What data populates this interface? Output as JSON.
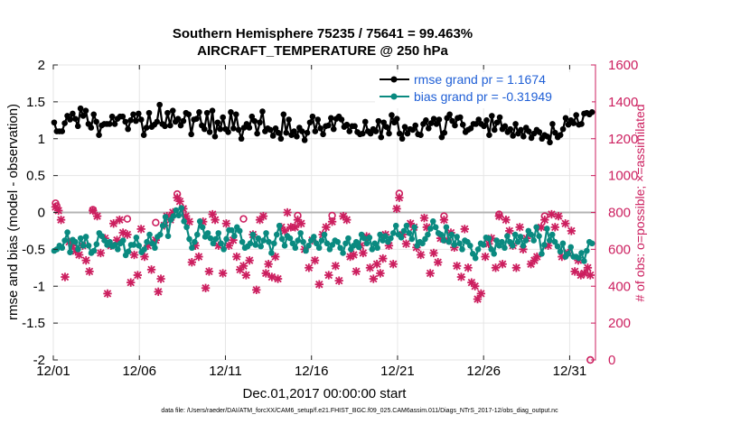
{
  "colors": {
    "rmse": "#000000",
    "bias": "#0a8a80",
    "obs": "#cc1f5f",
    "legend_text": "#1f5fd6",
    "zero_line": "#b4b4b4",
    "grid": "#e6e6e6"
  },
  "chart_data": {
    "type": "line",
    "title": [
      "Southern Hemisphere 75235 / 75641 = 99.463%",
      "AIRCRAFT_TEMPERATURE @ 250 hPa"
    ],
    "xlabel": "Dec.01,2017 00:00:00 start",
    "ylabel": "rmse and bias (model - observation)",
    "y2label": "# of obs: o=possible; ×=assimilated",
    "xlim": [
      0,
      31.5
    ],
    "ylim": [
      -2,
      2
    ],
    "y2lim": [
      0,
      1600
    ],
    "xticks": [
      0,
      5,
      10,
      15,
      20,
      25,
      30
    ],
    "xtick_labels": [
      "12/01",
      "12/06",
      "12/11",
      "12/16",
      "12/21",
      "12/26",
      "12/31"
    ],
    "yticks": [
      2,
      1.5,
      1,
      0.5,
      0,
      -0.5,
      -1,
      -1.5,
      -2
    ],
    "ytick_labels": [
      "2",
      "1.5",
      "1",
      "0.5",
      "0",
      "-0.5",
      "-1",
      "-1.5",
      "-2"
    ],
    "y2ticks": [
      1600,
      1400,
      1200,
      1000,
      800,
      600,
      400,
      200,
      0
    ],
    "y2tick_labels": [
      "1600",
      "1400",
      "1200",
      "1000",
      "800",
      "600",
      "400",
      "200",
      "0"
    ],
    "legend_position": "top-right",
    "legend": [
      "rmse grand pr = 1.1674",
      "bias grand pr = -0.31949"
    ],
    "footer": "data file: /Users/raeder/DAI/ATM_forcXX/CAM6_setup/f.e21.FHIST_BGC.f09_025.CAM6assim.011/Diags_NTrS_2017-12/obs_diag_output.nc",
    "series": [
      {
        "name": "rmse",
        "values": [
          1.22,
          1.1,
          1.1,
          1.1,
          1.21,
          1.31,
          1.26,
          1.34,
          1.27,
          1.17,
          1.41,
          1.31,
          1.38,
          1.2,
          1.15,
          1.33,
          1.23,
          1.05,
          1.18,
          1.2,
          1.2,
          1.2,
          1.3,
          1.2,
          1.27,
          1.3,
          1.3,
          1.23,
          1.13,
          1.25,
          1.33,
          1.24,
          1.34,
          1.26,
          1.05,
          1.15,
          1.35,
          1.16,
          1.19,
          1.23,
          1.46,
          1.2,
          1.17,
          1.35,
          1.18,
          1.38,
          1.23,
          1.27,
          1.18,
          1.24,
          1.35,
          1.33,
          1.06,
          1.26,
          1.27,
          1.36,
          1.18,
          1.13,
          1.35,
          1.09,
          1.38,
          1.03,
          1.22,
          1.13,
          1.29,
          1.13,
          1.09,
          1.36,
          1.14,
          1.33,
          1.12,
          1.0,
          1.15,
          1.2,
          1.15,
          1.3,
          1.24,
          1.07,
          1.22,
          1.37,
          1.1,
          1.14,
          1.12,
          1.04,
          1.14,
          1.08,
          1.0,
          1.33,
          1.08,
          1.26,
          1.05,
          1.1,
          1.03,
          1.15,
          1.1,
          0.98,
          1.08,
          1.22,
          1.3,
          1.1,
          1.26,
          1.14,
          1.06,
          1.17,
          1.18,
          1.28,
          1.13,
          1.27,
          1.3,
          1.26,
          1.16,
          1.19,
          1.1,
          1.17,
          1.17,
          1.09,
          1.06,
          1.07,
          1.23,
          1.1,
          1.07,
          1.13,
          1.1,
          1.24,
          1.02,
          1.22,
          1.16,
          1.07,
          1.32,
          1.22,
          1.27,
          1.07,
          1.0,
          1.16,
          1.07,
          1.13,
          1.12,
          1.18,
          1.06,
          1.05,
          1.2,
          1.25,
          1.14,
          1.21,
          1.27,
          1.2,
          1.26,
          1.02,
          1.08,
          1.28,
          1.33,
          1.24,
          1.18,
          1.28,
          1.29,
          1.19,
          1.09,
          1.12,
          1.14,
          1.2,
          1.2,
          1.26,
          1.2,
          1.17,
          1.25,
          1.05,
          1.31,
          1.12,
          1.22,
          1.29,
          1.13,
          1.17,
          1.09,
          1.13,
          1.04,
          1.2,
          1.07,
          1.12,
          1.03,
          1.15,
          1.1,
          1.01,
          1.07,
          1.12,
          1.09,
          1.0,
          1.05,
          1.03,
          0.95,
          1.2,
          1.08,
          1.02,
          1.05,
          1.13,
          1.28,
          1.19,
          1.25,
          1.21,
          1.32,
          1.19,
          1.2,
          1.34,
          1.35,
          1.33,
          1.36
        ]
      },
      {
        "name": "bias",
        "values": [
          -0.52,
          -0.5,
          -0.45,
          -0.48,
          -0.38,
          -0.27,
          -0.54,
          -0.37,
          -0.4,
          -0.5,
          -0.35,
          -0.45,
          -0.33,
          -0.45,
          -0.55,
          -0.52,
          -0.43,
          -0.28,
          -0.32,
          -0.38,
          -0.44,
          -0.4,
          -0.46,
          -0.44,
          -0.5,
          -0.42,
          -0.38,
          -0.58,
          -0.53,
          -0.44,
          -0.44,
          -0.34,
          -0.45,
          -0.54,
          -0.5,
          -0.4,
          -0.3,
          -0.42,
          -0.48,
          -0.33,
          -0.3,
          -0.18,
          -0.06,
          -0.32,
          -0.1,
          -0.05,
          0.03,
          -0.04,
          0.06,
          -0.12,
          -0.2,
          -0.36,
          -0.48,
          -0.4,
          -0.3,
          -0.12,
          -0.2,
          -0.33,
          -0.28,
          -0.35,
          -0.42,
          -0.36,
          -0.28,
          -0.42,
          -0.5,
          -0.36,
          -0.24,
          -0.24,
          -0.32,
          -0.2,
          -0.25,
          -0.4,
          -0.48,
          -0.46,
          -0.42,
          -0.3,
          -0.44,
          -0.35,
          -0.46,
          -0.38,
          -0.28,
          -0.4,
          -0.55,
          -0.42,
          -0.3,
          -0.18,
          -0.36,
          -0.45,
          -0.32,
          -0.35,
          -0.42,
          -0.48,
          -0.38,
          -0.28,
          -0.4,
          -0.52,
          -0.45,
          -0.38,
          -0.33,
          -0.42,
          -0.48,
          -0.38,
          -0.3,
          -0.42,
          -0.5,
          -0.44,
          -0.38,
          -0.4,
          -0.48,
          -0.55,
          -0.42,
          -0.35,
          -0.5,
          -0.45,
          -0.4,
          -0.47,
          -0.3,
          -0.35,
          -0.42,
          -0.34,
          -0.5,
          -0.42,
          -0.48,
          -0.3,
          -0.38,
          -0.32,
          -0.4,
          -0.35,
          -0.28,
          -0.18,
          -0.3,
          -0.34,
          -0.25,
          -0.18,
          -0.28,
          -0.36,
          -0.2,
          -0.45,
          -0.4,
          -0.42,
          -0.36,
          -0.3,
          -0.22,
          -0.12,
          -0.2,
          -0.28,
          -0.3,
          -0.38,
          -0.2,
          -0.4,
          -0.3,
          -0.44,
          -0.33,
          -0.42,
          -0.5,
          -0.38,
          -0.4,
          -0.45,
          -0.56,
          -0.62,
          -0.5,
          -0.42,
          -0.44,
          -0.34,
          -0.35,
          -0.5,
          -0.56,
          -0.38,
          -0.45,
          -0.4,
          -0.48,
          -0.32,
          -0.4,
          -0.45,
          -0.3,
          -0.4,
          -0.33,
          -0.45,
          -0.38,
          -0.25,
          -0.3,
          -0.38,
          -0.2,
          -0.32,
          -0.56,
          -0.44,
          -0.22,
          -0.38,
          -0.3,
          -0.4,
          -0.46,
          -0.53,
          -0.42,
          -0.6,
          -0.56,
          -0.47,
          -0.6,
          -0.6,
          -0.62,
          -0.55,
          -0.66,
          -0.52,
          -0.4,
          -0.42
        ]
      },
      {
        "name": "obs_assimilated",
        "points": [
          [
            0.13,
            830
          ],
          [
            0.3,
            810
          ],
          [
            0.45,
            760
          ],
          [
            0.68,
            450
          ],
          [
            0.92,
            640
          ],
          [
            1.1,
            620
          ],
          [
            1.3,
            590
          ],
          [
            1.5,
            570
          ],
          [
            1.7,
            620
          ],
          [
            1.9,
            540
          ],
          [
            2.1,
            480
          ],
          [
            2.3,
            810
          ],
          [
            2.55,
            780
          ],
          [
            2.75,
            580
          ],
          [
            3.0,
            660
          ],
          [
            3.15,
            360
          ],
          [
            3.35,
            620
          ],
          [
            3.5,
            740
          ],
          [
            3.7,
            650
          ],
          [
            3.85,
            760
          ],
          [
            4.05,
            690
          ],
          [
            4.3,
            680
          ],
          [
            4.5,
            420
          ],
          [
            4.7,
            570
          ],
          [
            4.9,
            460
          ],
          [
            5.1,
            710
          ],
          [
            5.3,
            560
          ],
          [
            5.5,
            620
          ],
          [
            5.7,
            490
          ],
          [
            5.95,
            650
          ],
          [
            6.1,
            370
          ],
          [
            6.25,
            440
          ],
          [
            6.45,
            730
          ],
          [
            6.6,
            780
          ],
          [
            6.8,
            760
          ],
          [
            6.95,
            800
          ],
          [
            7.2,
            880
          ],
          [
            7.35,
            860
          ],
          [
            7.55,
            820
          ],
          [
            7.7,
            780
          ],
          [
            7.9,
            750
          ],
          [
            8.05,
            530
          ],
          [
            8.25,
            620
          ],
          [
            8.45,
            560
          ],
          [
            8.7,
            750
          ],
          [
            8.85,
            390
          ],
          [
            9.05,
            480
          ],
          [
            9.25,
            790
          ],
          [
            9.4,
            760
          ],
          [
            9.6,
            620
          ],
          [
            9.85,
            470
          ],
          [
            10.05,
            740
          ],
          [
            10.2,
            620
          ],
          [
            10.45,
            650
          ],
          [
            10.65,
            560
          ],
          [
            10.85,
            490
          ],
          [
            11.05,
            510
          ],
          [
            11.2,
            460
          ],
          [
            11.4,
            540
          ],
          [
            11.6,
            680
          ],
          [
            11.8,
            380
          ],
          [
            12.0,
            760
          ],
          [
            12.2,
            780
          ],
          [
            12.35,
            470
          ],
          [
            12.5,
            520
          ],
          [
            12.7,
            450
          ],
          [
            12.9,
            560
          ],
          [
            13.05,
            440
          ],
          [
            13.25,
            720
          ],
          [
            13.45,
            700
          ],
          [
            13.6,
            800
          ],
          [
            13.8,
            720
          ],
          [
            14.05,
            720
          ],
          [
            14.2,
            760
          ],
          [
            14.4,
            740
          ],
          [
            14.6,
            600
          ],
          [
            14.85,
            500
          ],
          [
            15.05,
            650
          ],
          [
            15.2,
            540
          ],
          [
            15.45,
            410
          ],
          [
            15.65,
            680
          ],
          [
            15.85,
            720
          ],
          [
            16.0,
            460
          ],
          [
            16.2,
            750
          ],
          [
            16.4,
            510
          ],
          [
            16.6,
            430
          ],
          [
            16.85,
            780
          ],
          [
            17.05,
            760
          ],
          [
            17.25,
            560
          ],
          [
            17.45,
            570
          ],
          [
            17.6,
            480
          ],
          [
            17.85,
            620
          ],
          [
            18.0,
            580
          ],
          [
            18.2,
            670
          ],
          [
            18.4,
            500
          ],
          [
            18.6,
            440
          ],
          [
            18.8,
            520
          ],
          [
            19.0,
            470
          ],
          [
            19.15,
            550
          ],
          [
            19.3,
            680
          ],
          [
            19.5,
            620
          ],
          [
            19.75,
            520
          ],
          [
            19.95,
            820
          ],
          [
            20.1,
            880
          ],
          [
            20.3,
            680
          ],
          [
            20.5,
            630
          ],
          [
            20.75,
            740
          ],
          [
            20.95,
            720
          ],
          [
            21.1,
            610
          ],
          [
            21.35,
            570
          ],
          [
            21.55,
            770
          ],
          [
            21.7,
            720
          ],
          [
            21.9,
            470
          ],
          [
            22.1,
            580
          ],
          [
            22.35,
            530
          ],
          [
            22.5,
            660
          ],
          [
            22.7,
            760
          ],
          [
            22.9,
            650
          ],
          [
            23.1,
            690
          ],
          [
            23.3,
            610
          ],
          [
            23.45,
            510
          ],
          [
            23.7,
            450
          ],
          [
            23.9,
            710
          ],
          [
            24.1,
            500
          ],
          [
            24.3,
            420
          ],
          [
            24.5,
            400
          ],
          [
            24.65,
            330
          ],
          [
            24.85,
            360
          ],
          [
            25.1,
            560
          ],
          [
            25.3,
            630
          ],
          [
            25.45,
            660
          ],
          [
            25.7,
            500
          ],
          [
            25.9,
            780
          ],
          [
            26.1,
            520
          ],
          [
            26.3,
            760
          ],
          [
            26.5,
            700
          ],
          [
            26.7,
            620
          ],
          [
            26.9,
            500
          ],
          [
            27.1,
            720
          ],
          [
            27.3,
            600
          ],
          [
            27.5,
            660
          ],
          [
            27.75,
            520
          ],
          [
            27.95,
            540
          ],
          [
            28.1,
            560
          ],
          [
            28.35,
            720
          ],
          [
            28.55,
            760
          ],
          [
            28.75,
            620
          ],
          [
            28.95,
            790
          ],
          [
            29.15,
            720
          ],
          [
            29.35,
            780
          ],
          [
            29.55,
            560
          ],
          [
            29.75,
            740
          ],
          [
            29.9,
            580
          ],
          [
            30.1,
            700
          ],
          [
            30.3,
            480
          ],
          [
            30.5,
            540
          ],
          [
            30.65,
            460
          ],
          [
            30.85,
            470
          ],
          [
            31.05,
            500
          ],
          [
            31.2,
            460
          ]
        ]
      },
      {
        "name": "obs_possible",
        "points": [
          [
            0.13,
            850
          ],
          [
            0.2,
            835
          ],
          [
            2.3,
            815
          ],
          [
            4.3,
            765
          ],
          [
            5.95,
            745
          ],
          [
            7.2,
            900
          ],
          [
            11.05,
            765
          ],
          [
            14.2,
            783
          ],
          [
            16.2,
            783
          ],
          [
            20.1,
            903
          ],
          [
            22.7,
            780
          ],
          [
            25.9,
            790
          ],
          [
            28.55,
            780
          ],
          [
            31.2,
            0
          ]
        ]
      }
    ]
  }
}
